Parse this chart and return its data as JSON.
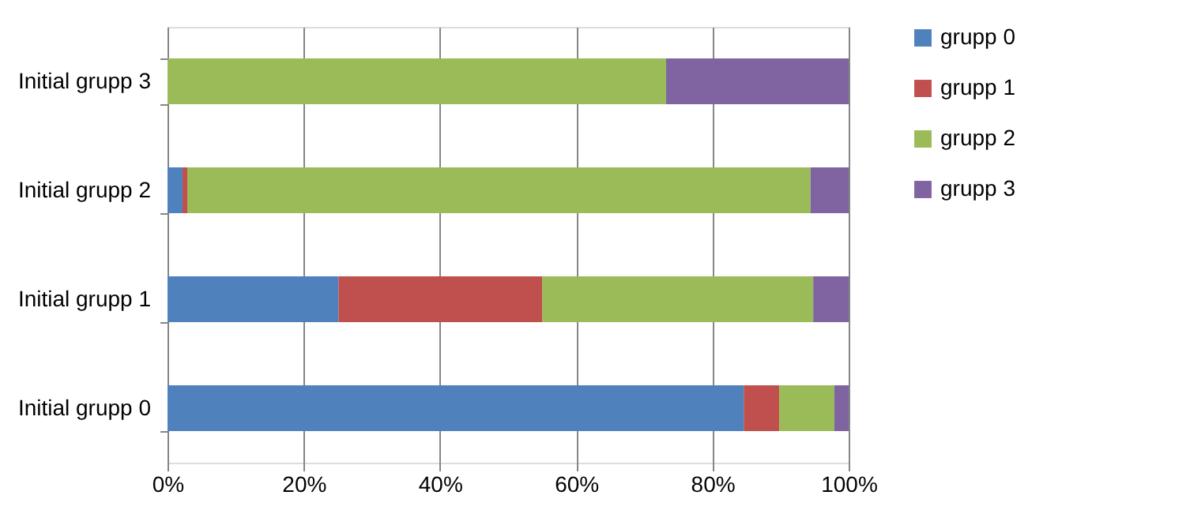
{
  "chart_data": {
    "type": "bar",
    "orientation": "horizontal",
    "stacked": true,
    "categories": [
      "Initial grupp 3",
      "Initial grupp 2",
      "Initial grupp 1",
      "Initial grupp 0"
    ],
    "series": [
      {
        "name": "grupp 0",
        "color": "#4f81bd",
        "values": [
          0,
          2.2,
          25.1,
          84.6
        ]
      },
      {
        "name": "grupp 1",
        "color": "#c0504d",
        "values": [
          0,
          0.7,
          29.9,
          5.2
        ]
      },
      {
        "name": "grupp 2",
        "color": "#9bbb59",
        "values": [
          73.2,
          91.5,
          39.8,
          8.1
        ]
      },
      {
        "name": "grupp 3",
        "color": "#8064a2",
        "values": [
          26.8,
          5.6,
          5.2,
          2.1
        ]
      }
    ],
    "xlim": [
      0,
      100
    ],
    "xticks": [
      {
        "value": 0,
        "label": "0%"
      },
      {
        "value": 20,
        "label": "20%"
      },
      {
        "value": 40,
        "label": "40%"
      },
      {
        "value": 60,
        "label": "60%"
      },
      {
        "value": 80,
        "label": "80%"
      },
      {
        "value": 100,
        "label": "100%"
      }
    ],
    "grid": "x",
    "legend": "right"
  }
}
